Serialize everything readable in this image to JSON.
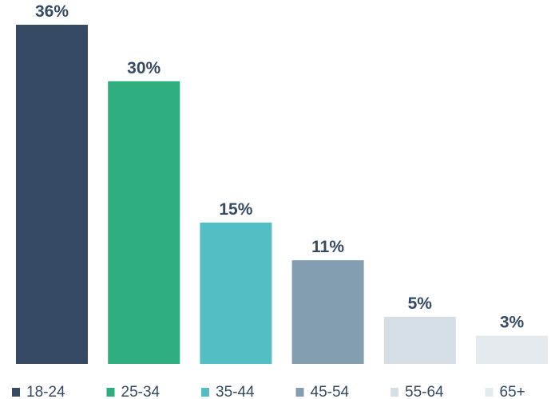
{
  "chart_data": {
    "type": "bar",
    "categories": [
      "18-24",
      "25-34",
      "35-44",
      "45-54",
      "55-64",
      "65+"
    ],
    "values": [
      36,
      30,
      15,
      11,
      5,
      3
    ],
    "data_labels": [
      "36%",
      "30%",
      "15%",
      "11%",
      "5%",
      "3%"
    ],
    "colors": [
      "#364b63",
      "#2eae7f",
      "#53bec4",
      "#839eb0",
      "#d6dee5",
      "#e5eaef"
    ],
    "ylim": [
      0,
      36
    ],
    "grid": false,
    "legend": "bottom"
  }
}
